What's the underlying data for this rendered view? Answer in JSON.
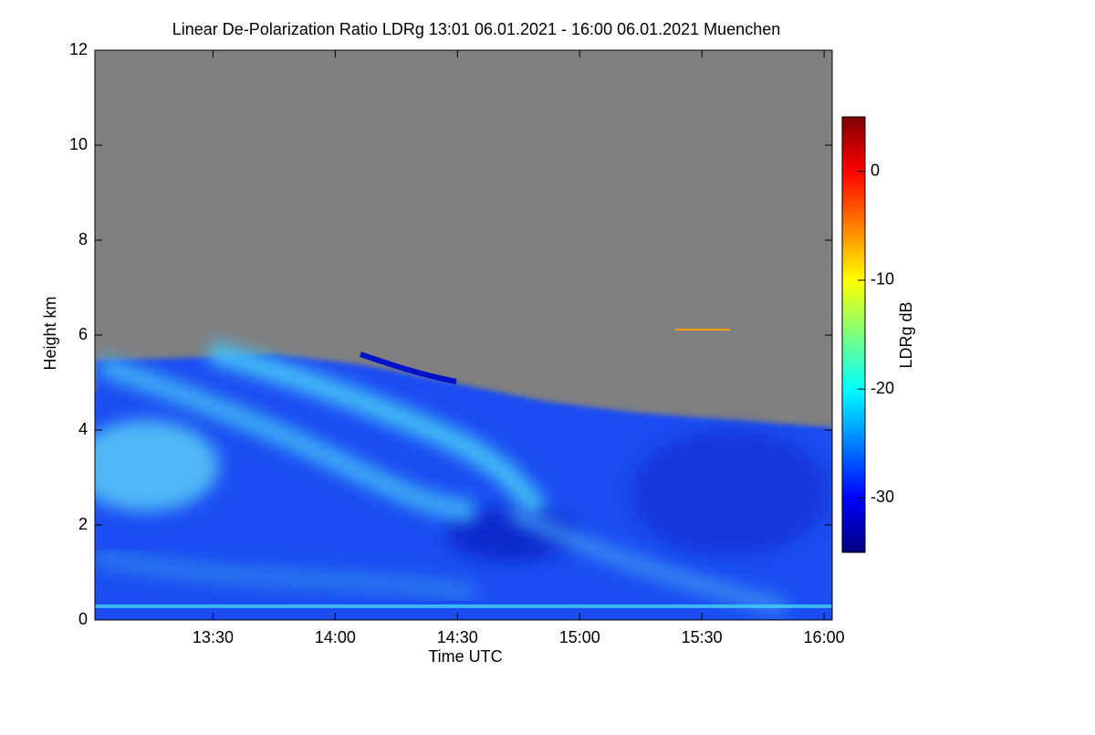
{
  "chart_data": {
    "type": "heatmap",
    "title": "Linear De-Polarization Ratio LDRg   13:01 06.01.2021 - 16:00 06.01.2021 Muenchen",
    "x_label": "Time UTC",
    "y_label": "Height km",
    "colorbar_label": "LDRg dB",
    "xlim": [
      781,
      962
    ],
    "xticks": [
      {
        "value": 810,
        "label": "13:30"
      },
      {
        "value": 840,
        "label": "14:00"
      },
      {
        "value": 870,
        "label": "14:30"
      },
      {
        "value": 900,
        "label": "15:00"
      },
      {
        "value": 930,
        "label": "15:30"
      },
      {
        "value": 960,
        "label": "16:00"
      }
    ],
    "ylim": [
      0,
      12
    ],
    "yticks": [
      0,
      2,
      4,
      6,
      8,
      10,
      12
    ],
    "zlim": [
      -35,
      5
    ],
    "zticks": [
      -30,
      -20,
      -10,
      0
    ],
    "colormap": [
      "#00007f",
      "#0000ff",
      "#007fff",
      "#00ffff",
      "#7fff7f",
      "#ffff00",
      "#ff7f00",
      "#ff0000",
      "#7f0000"
    ],
    "no_data_color": "#808080"
  }
}
